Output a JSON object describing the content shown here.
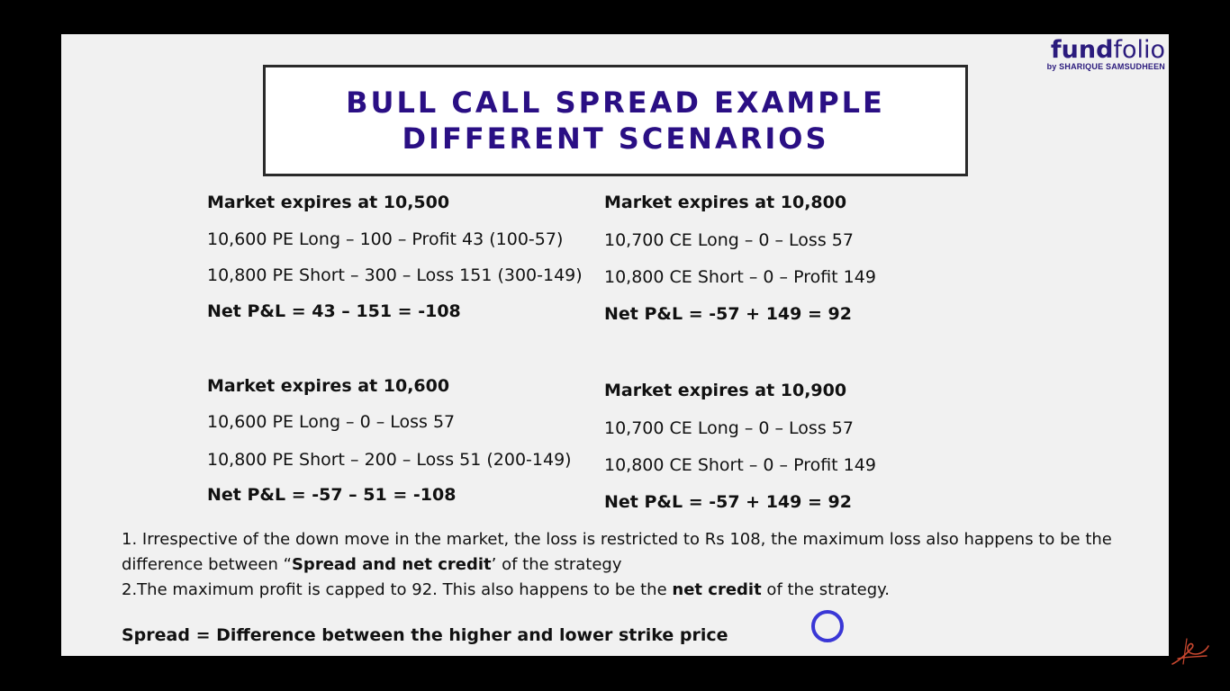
{
  "logo": {
    "brand_part1": "fund",
    "brand_part2": "folio",
    "byline": "by SHARIQUE SAMSUDHEEN"
  },
  "title": {
    "line1": "BULL CALL SPREAD EXAMPLE",
    "line2": "DIFFERENT SCENARIOS"
  },
  "scenarios": [
    {
      "heading": "Market expires at 10,500",
      "lines": [
        "10,600 PE Long – 100 – Profit 43 (100-57)",
        "10,800 PE Short – 300 – Loss 151 (300-149)"
      ],
      "net": "Net P&L = 43 – 151 = -108"
    },
    {
      "heading": "Market expires at 10,800",
      "lines": [
        "10,700 CE Long – 0 – Loss 57",
        "10,800 CE Short – 0 – Profit 149"
      ],
      "net": "Net P&L = -57 + 149 = 92"
    },
    {
      "heading": "Market expires at 10,600",
      "lines": [
        "10,600 PE Long – 0 – Loss 57",
        "10,800 PE Short – 200 – Loss 51 (200-149)"
      ],
      "net": "Net P&L = -57 – 51 = -108"
    },
    {
      "heading": "Market expires at 10,900",
      "lines": [
        "10,700 CE Long – 0 – Loss 57",
        "10,800 CE Short – 0 – Profit 149"
      ],
      "net": "Net P&L = -57 + 149 = 92"
    }
  ],
  "notes": {
    "note1_part1": "1. Irrespective of the down move in the market, the loss is restricted to Rs 108, the maximum loss also happens to be the difference between “",
    "note1_bold": "Spread and net credit",
    "note1_part2": "’ of the strategy",
    "note2_part1": "2.The maximum profit is capped to 92. This also happens to be the ",
    "note2_bold": "net credit",
    "note2_part2": " of the strategy."
  },
  "spread_definition": "Spread = Difference between the higher and lower strike price",
  "colors": {
    "title": "#2a0f84",
    "brand": "#2b1b7d",
    "cursor": "#3a37d6",
    "background": "#000000",
    "slide": "#f1f1f1"
  }
}
